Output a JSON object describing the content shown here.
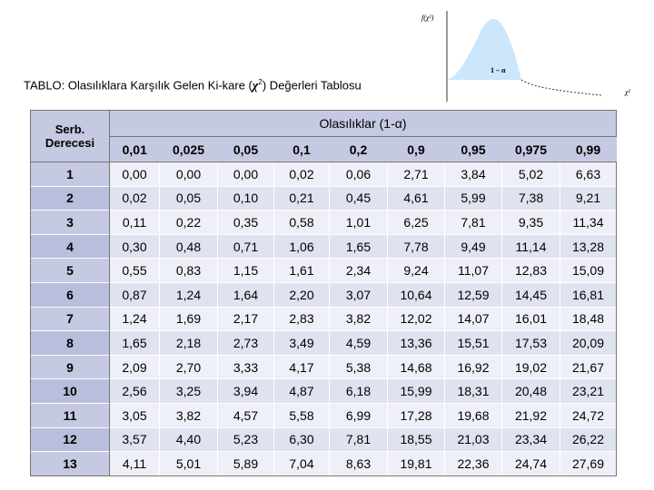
{
  "title": {
    "prefix": "TABLO: Olasılıklara Karşılık Gelen Ki-kare (",
    "chi": "χ",
    "sup": "2",
    "suffix": ") Değerleri Tablosu"
  },
  "figure": {
    "y_label": "f(χ²)",
    "area_label": "1 – α",
    "x_label": "χ²",
    "area_color": "#cce6fb"
  },
  "table": {
    "group_header": "Olasılıklar (1-α)",
    "row_header": "Serb. Derecesi",
    "row_header_line1": "Serb.",
    "row_header_line2": "Derecesi",
    "columns": [
      "0,01",
      "0,025",
      "0,05",
      "0,1",
      "0,2",
      "0,9",
      "0,95",
      "0,975",
      "0,99"
    ],
    "rows": [
      {
        "df": "1",
        "values": [
          "0,00",
          "0,00",
          "0,00",
          "0,02",
          "0,06",
          "2,71",
          "3,84",
          "5,02",
          "6,63"
        ]
      },
      {
        "df": "2",
        "values": [
          "0,02",
          "0,05",
          "0,10",
          "0,21",
          "0,45",
          "4,61",
          "5,99",
          "7,38",
          "9,21"
        ]
      },
      {
        "df": "3",
        "values": [
          "0,11",
          "0,22",
          "0,35",
          "0,58",
          "1,01",
          "6,25",
          "7,81",
          "9,35",
          "11,34"
        ]
      },
      {
        "df": "4",
        "values": [
          "0,30",
          "0,48",
          "0,71",
          "1,06",
          "1,65",
          "7,78",
          "9,49",
          "11,14",
          "13,28"
        ]
      },
      {
        "df": "5",
        "values": [
          "0,55",
          "0,83",
          "1,15",
          "1,61",
          "2,34",
          "9,24",
          "11,07",
          "12,83",
          "15,09"
        ]
      },
      {
        "df": "6",
        "values": [
          "0,87",
          "1,24",
          "1,64",
          "2,20",
          "3,07",
          "10,64",
          "12,59",
          "14,45",
          "16,81"
        ]
      },
      {
        "df": "7",
        "values": [
          "1,24",
          "1,69",
          "2,17",
          "2,83",
          "3,82",
          "12,02",
          "14,07",
          "16,01",
          "18,48"
        ]
      },
      {
        "df": "8",
        "values": [
          "1,65",
          "2,18",
          "2,73",
          "3,49",
          "4,59",
          "13,36",
          "15,51",
          "17,53",
          "20,09"
        ]
      },
      {
        "df": "9",
        "values": [
          "2,09",
          "2,70",
          "3,33",
          "4,17",
          "5,38",
          "14,68",
          "16,92",
          "19,02",
          "21,67"
        ]
      },
      {
        "df": "10",
        "values": [
          "2,56",
          "3,25",
          "3,94",
          "4,87",
          "6,18",
          "15,99",
          "18,31",
          "20,48",
          "23,21"
        ]
      },
      {
        "df": "11",
        "values": [
          "3,05",
          "3,82",
          "4,57",
          "5,58",
          "6,99",
          "17,28",
          "19,68",
          "21,92",
          "24,72"
        ]
      },
      {
        "df": "12",
        "values": [
          "3,57",
          "4,40",
          "5,23",
          "6,30",
          "7,81",
          "18,55",
          "21,03",
          "23,34",
          "26,22"
        ]
      },
      {
        "df": "13",
        "values": [
          "4,11",
          "5,01",
          "5,89",
          "7,04",
          "8,63",
          "19,81",
          "22,36",
          "24,74",
          "27,69"
        ]
      }
    ]
  },
  "colors": {
    "header_bg": "#c5c9e2",
    "cell_bg": "#eff0f7",
    "cell_alt_bg": "#dfe2ef"
  }
}
